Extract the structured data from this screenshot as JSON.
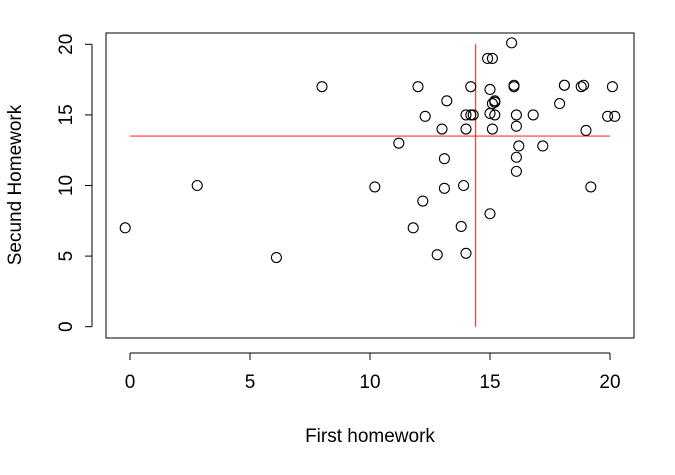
{
  "chart_data": {
    "type": "scatter",
    "xlabel": "First homework",
    "ylabel": "Secund Homework",
    "xlim": [
      -1,
      21
    ],
    "ylim": [
      -0.8,
      20.8
    ],
    "xticks": [
      0,
      5,
      10,
      15,
      20
    ],
    "yticks": [
      0,
      5,
      10,
      15,
      20
    ],
    "x_tick_labels": [
      "0",
      "5",
      "10",
      "15",
      "20"
    ],
    "y_tick_labels": [
      "0",
      "5",
      "10",
      "15",
      "20"
    ],
    "marker": "open-circle",
    "reference_lines": {
      "color": "#ff3b2f",
      "horizontal": {
        "y": 13.5,
        "x_range": [
          0,
          20
        ]
      },
      "vertical": {
        "x": 14.4,
        "y_range": [
          0,
          20
        ]
      }
    },
    "series": [
      {
        "x": [
          -0.2,
          2.8,
          6.1,
          8.0,
          10.2,
          11.2,
          11.8,
          12.0,
          12.2,
          12.3,
          12.8,
          13.0,
          13.1,
          13.1,
          13.2,
          13.8,
          13.9,
          14.0,
          14.0,
          14.0,
          14.2,
          14.2,
          14.3,
          14.9,
          15.0,
          15.0,
          15.0,
          15.1,
          15.1,
          15.1,
          15.2,
          15.2,
          15.2,
          15.9,
          16.0,
          16.0,
          16.1,
          16.1,
          16.1,
          16.1,
          16.2,
          16.8,
          17.2,
          17.9,
          18.1,
          18.1,
          18.8,
          18.9,
          19.0,
          19.2,
          19.9,
          20.1,
          20.2
        ],
        "y": [
          7,
          10,
          4.9,
          17,
          9.9,
          13,
          7,
          17,
          8.9,
          14.9,
          5.1,
          14,
          9.8,
          11.9,
          16,
          7.1,
          10,
          14,
          5.2,
          15,
          17,
          15,
          15,
          19,
          16.8,
          8,
          15.1,
          14,
          19,
          15.8,
          15,
          16,
          15.9,
          20.1,
          17,
          17.1,
          15,
          14.2,
          12,
          11,
          12.8,
          15,
          12.8,
          15.8,
          17.1,
          17.1,
          17,
          17.1,
          13.9,
          9.9,
          14.9,
          17,
          14.9
        ]
      }
    ]
  }
}
